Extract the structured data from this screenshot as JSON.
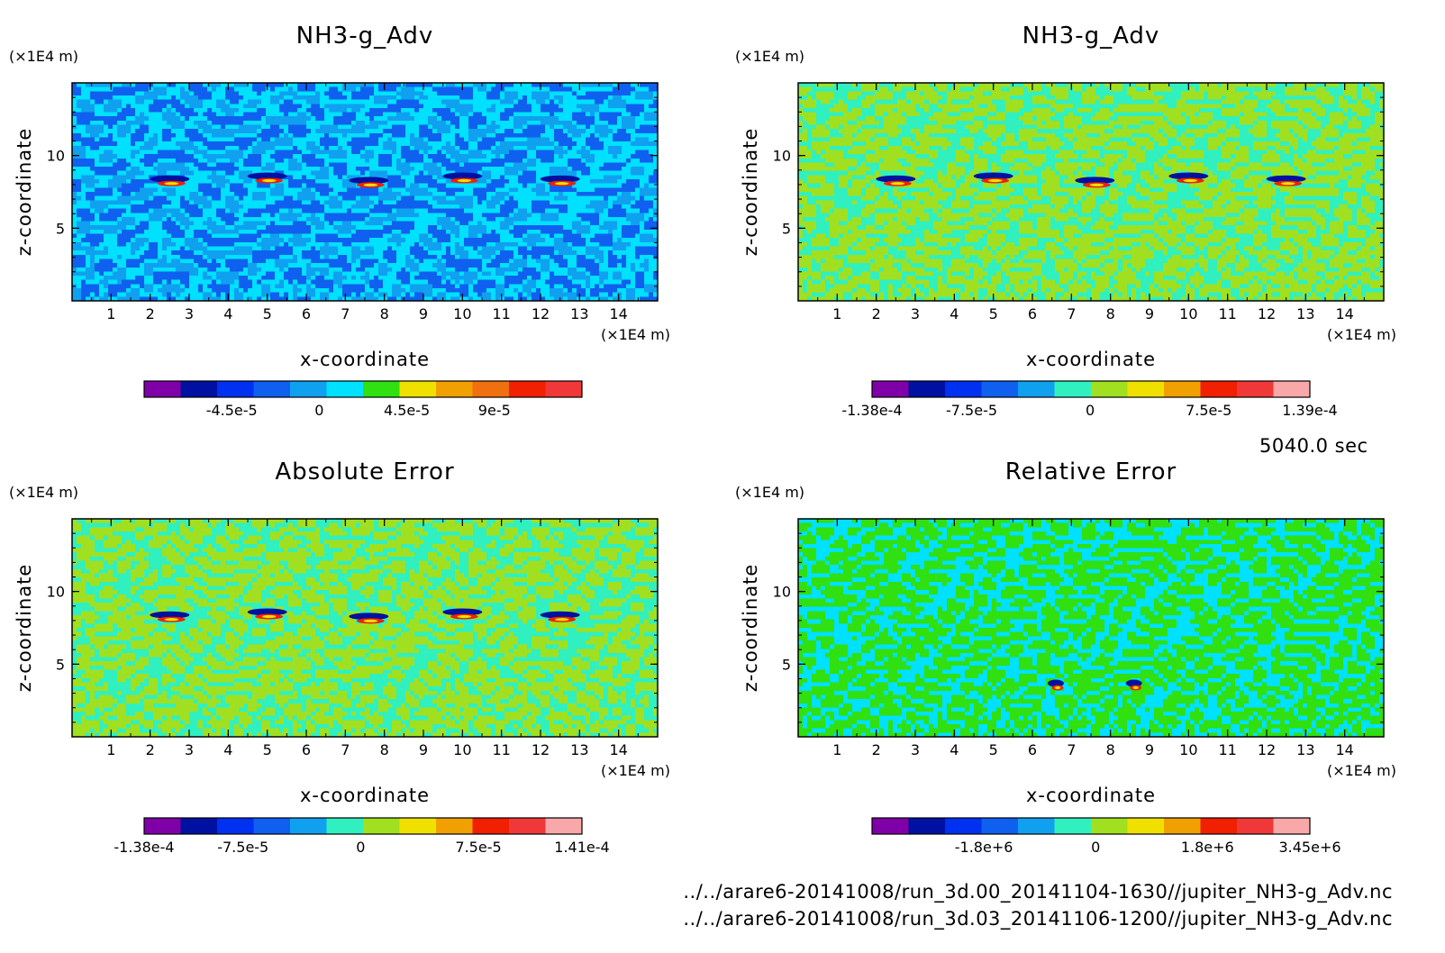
{
  "run_time": "5040.0 sec",
  "files": [
    "../../arare6-20141008/run_3d.00_20141104-1630//jupiter_NH3-g_Adv.nc",
    "../../arare6-20141008/run_3d.03_20141106-1200//jupiter_NH3-g_Adv.nc"
  ],
  "colors": {
    "levels": [
      "#8000a8",
      "#0010a0",
      "#0030f0",
      "#1060f0",
      "#10a0f0",
      "#00e0ff",
      "#30f0c0",
      "#30e010",
      "#a0e020",
      "#f0e000",
      "#f0a000",
      "#f07010",
      "#f02000",
      "#f03838",
      "#f8a8a8"
    ]
  },
  "chart_data": [
    {
      "type": "heatmap",
      "title": "NH3-g_Adv",
      "xlabel": "x-coordinate",
      "ylabel": "z-coordinate",
      "x_unit": "(×1E4 m)",
      "y_unit": "(×1E4 m)",
      "xlim": [
        0,
        15
      ],
      "ylim": [
        0,
        15
      ],
      "x_ticks": [
        "1",
        "2",
        "3",
        "4",
        "5",
        "6",
        "7",
        "8",
        "9",
        "10",
        "11",
        "12",
        "13",
        "14"
      ],
      "y_ticks": [
        "5",
        "10"
      ],
      "colorbar_labels": [
        "-4.5e-5",
        "0",
        "4.5e-5",
        "9e-5"
      ],
      "colorbar_range": [
        -9e-05,
        0.000135
      ],
      "field_min": -9e-05,
      "field_max": 0.000135,
      "background_value": 9e-06
    },
    {
      "type": "heatmap",
      "title": "NH3-g_Adv",
      "xlabel": "x-coordinate",
      "ylabel": "z-coordinate",
      "x_unit": "(×1E4 m)",
      "y_unit": "(×1E4 m)",
      "xlim": [
        0,
        15
      ],
      "ylim": [
        0,
        15
      ],
      "x_ticks": [
        "1",
        "2",
        "3",
        "4",
        "5",
        "6",
        "7",
        "8",
        "9",
        "10",
        "11",
        "12",
        "13",
        "14"
      ],
      "y_ticks": [
        "5",
        "10"
      ],
      "colorbar_labels": [
        "-1.38e-4",
        "-7.5e-5",
        "0",
        "7.5e-5",
        "1.39e-4"
      ],
      "colorbar_range": [
        -0.000138,
        0.000139
      ],
      "field_min": -0.000138,
      "field_max": 0.000139,
      "background_value": 1e-05
    },
    {
      "type": "heatmap",
      "title": "Absolute Error",
      "xlabel": "x-coordinate",
      "ylabel": "z-coordinate",
      "x_unit": "(×1E4 m)",
      "y_unit": "(×1E4 m)",
      "xlim": [
        0,
        15
      ],
      "ylim": [
        0,
        15
      ],
      "x_ticks": [
        "1",
        "2",
        "3",
        "4",
        "5",
        "6",
        "7",
        "8",
        "9",
        "10",
        "11",
        "12",
        "13",
        "14"
      ],
      "y_ticks": [
        "5",
        "10"
      ],
      "colorbar_labels": [
        "-1.38e-4",
        "-7.5e-5",
        "0",
        "7.5e-5",
        "1.41e-4"
      ],
      "colorbar_range": [
        -0.000138,
        0.000141
      ],
      "field_min": -0.000138,
      "field_max": 0.000141,
      "background_value": 1e-05
    },
    {
      "type": "heatmap",
      "title": "Relative Error",
      "xlabel": "x-coordinate",
      "ylabel": "z-coordinate",
      "x_unit": "(×1E4 m)",
      "y_unit": "(×1E4 m)",
      "xlim": [
        0,
        15
      ],
      "ylim": [
        0,
        15
      ],
      "x_ticks": [
        "1",
        "2",
        "3",
        "4",
        "5",
        "6",
        "7",
        "8",
        "9",
        "10",
        "11",
        "12",
        "13",
        "14"
      ],
      "y_ticks": [
        "5",
        "10"
      ],
      "colorbar_labels": [
        "-1.8e+6",
        "0",
        "1.8e+6",
        "3.45e+6"
      ],
      "colorbar_range": [
        -3600000.0,
        3450000.0
      ],
      "field_min": -3600000.0,
      "field_max": 3450000.0,
      "background_value": 200000.0
    }
  ]
}
